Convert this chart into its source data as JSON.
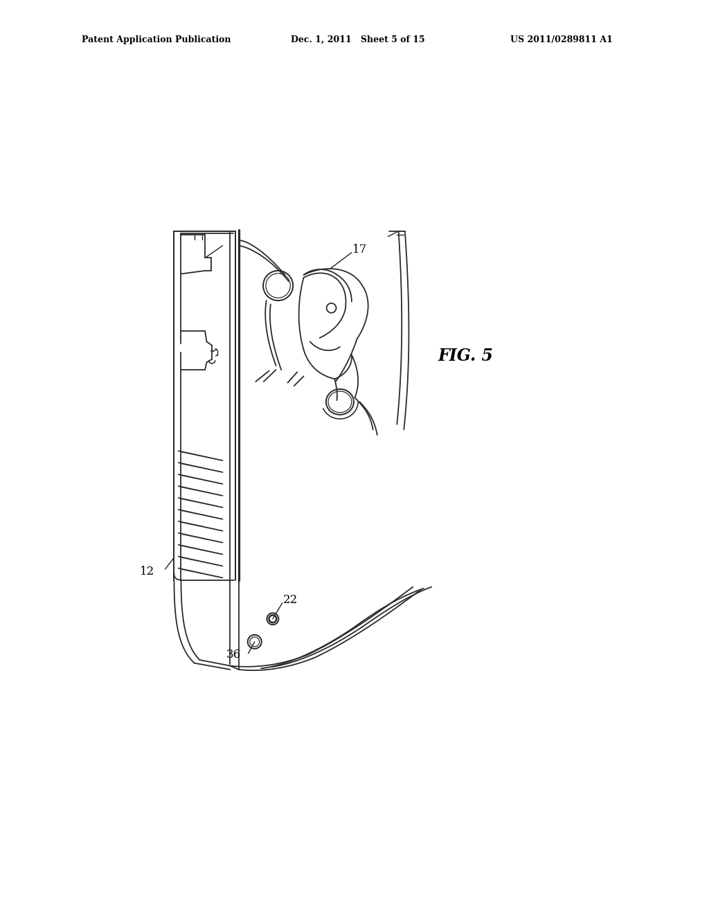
{
  "background_color": "#ffffff",
  "line_color": "#2a2a2a",
  "header_left": "Patent Application Publication",
  "header_center": "Dec. 1, 2011   Sheet 5 of 15",
  "header_right": "US 2011/0289811 A1",
  "fig_label": "FIG. 5",
  "label_12": "12",
  "label_17": "17",
  "label_22": "22",
  "label_36": "36",
  "line_width": 1.3,
  "page_width": 10.24,
  "page_height": 13.2
}
